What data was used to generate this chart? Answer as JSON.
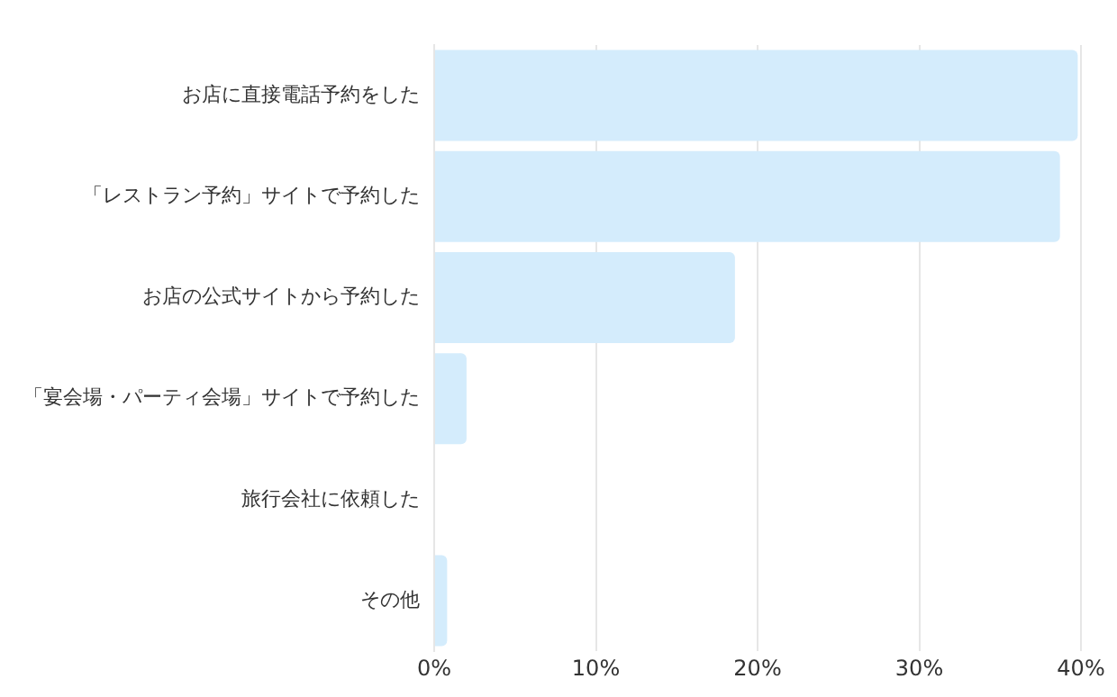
{
  "chart_data": {
    "type": "bar",
    "orientation": "horizontal",
    "categories": [
      "お店に直接電話予約をした",
      "「レストラン予約」サイトで予約した",
      "お店の公式サイトから予約した",
      "「宴会場・パーティ会場」サイトで予約した",
      "旅行会社に依頼した",
      "その他"
    ],
    "values": [
      39.8,
      38.7,
      18.6,
      2.0,
      0,
      0.8
    ],
    "color": "#d4ecfc",
    "xlim": [
      0,
      40
    ],
    "xticks": [
      {
        "value": 0,
        "label": "0%"
      },
      {
        "value": 10,
        "label": "10%"
      },
      {
        "value": 20,
        "label": "20%"
      },
      {
        "value": 30,
        "label": "30%"
      },
      {
        "value": 40,
        "label": "40%"
      }
    ],
    "grid": "x",
    "legend": false
  }
}
